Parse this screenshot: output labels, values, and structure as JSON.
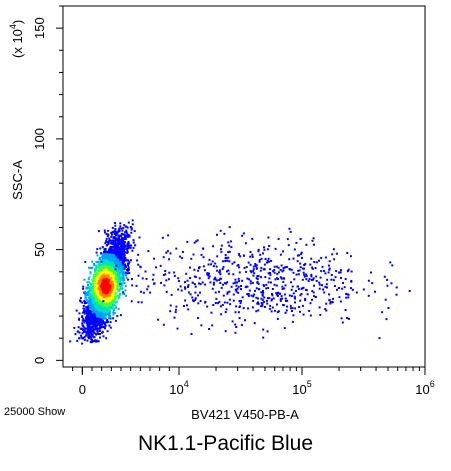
{
  "chart_data": {
    "type": "scatter",
    "title": "",
    "xlabel": "BV421 V450-PB-A",
    "ylabel": "SSC-A",
    "y_multiplier_label": "(x 10",
    "y_multiplier_exp": "4",
    "y_multiplier_close": ")",
    "x_scale": "biexponential",
    "y_scale": "linear",
    "xlim": [
      -2000,
      1000000
    ],
    "ylim": [
      -3,
      160
    ],
    "x_ticks": [
      {
        "value": 0,
        "label": "0"
      },
      {
        "value": 10000,
        "base": "10",
        "exp": "4"
      },
      {
        "value": 100000,
        "base": "10",
        "exp": "5"
      },
      {
        "value": 1000000,
        "base": "10",
        "exp": "6"
      }
    ],
    "y_ticks": [
      {
        "value": 0,
        "label": "0"
      },
      {
        "value": 50,
        "label": "50"
      },
      {
        "value": 100,
        "label": "100"
      },
      {
        "value": 150,
        "label": "150"
      }
    ],
    "event_count_label": "25000 Show",
    "grid": false,
    "density_colors": [
      "#0000ff",
      "#00a0ff",
      "#00e0c0",
      "#40ff40",
      "#ffff00",
      "#ff8000",
      "#ff0000"
    ],
    "populations": [
      {
        "x_center": 2300,
        "x_spread": 1500,
        "y_center": 34,
        "y_spread": 10,
        "fraction": 0.85
      },
      {
        "x_center": 40000,
        "x_spread": 30000,
        "y_center": 36,
        "y_spread": 10,
        "fraction": 0.15
      }
    ]
  },
  "caption": "NK1.1-Pacific Blue"
}
